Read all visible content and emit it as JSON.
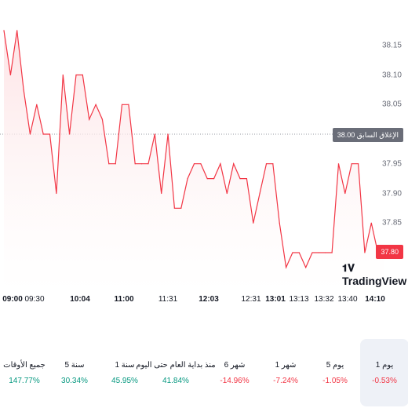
{
  "chart": {
    "y_ticks": [
      "38.15",
      "38.10",
      "38.05",
      "37.95",
      "37.90",
      "37.85"
    ],
    "x_ticks": [
      "09:00",
      "09:30",
      "10:04",
      "11:00",
      "11:31",
      "12:03",
      "12:31",
      "13:01",
      "13:13",
      "13:32",
      "13:40",
      "14:10"
    ],
    "prev_close_label": "الإغلاق السابق",
    "prev_close_value": "38.00",
    "last_price": "37.80",
    "watermark": "TradingView",
    "colors": {
      "line": "#f23645",
      "fill": "#fde2e4"
    }
  },
  "chart_data": {
    "type": "area",
    "y_range": [
      37.75,
      38.175
    ],
    "previous_close": 38.0,
    "series_values": [
      38.175,
      38.1,
      38.175,
      38.075,
      38.0,
      38.05,
      38.0,
      38.0,
      37.9,
      38.1,
      38.0,
      38.1,
      38.1,
      38.025,
      38.05,
      38.025,
      37.95,
      37.95,
      38.05,
      38.05,
      37.95,
      37.95,
      37.95,
      38.0,
      37.9,
      38.0,
      37.875,
      37.875,
      37.925,
      37.95,
      37.95,
      37.925,
      37.925,
      37.95,
      37.9,
      37.95,
      37.925,
      37.925,
      37.85,
      37.9,
      37.95,
      37.95,
      37.85,
      37.775,
      37.8,
      37.8,
      37.775,
      37.8,
      37.8,
      37.8,
      37.8,
      37.95,
      37.9,
      37.95,
      37.95,
      37.8,
      37.85,
      37.8,
      37.8
    ]
  },
  "periods": [
    {
      "label": "1 يوم",
      "change": "-0.53%",
      "direction": "down",
      "active": true
    },
    {
      "label": "5 يوم",
      "change": "-1.05%",
      "direction": "down",
      "active": false
    },
    {
      "label": "1 شهر",
      "change": "-7.24%",
      "direction": "down",
      "active": false
    },
    {
      "label": "6 شهر",
      "change": "-14.96%",
      "direction": "down",
      "active": false
    },
    {
      "label": "منذ بداية العام حتى اليوم",
      "change": "41.84%",
      "direction": "up",
      "active": false
    },
    {
      "label": "1 سنة",
      "change": "45.95%",
      "direction": "up",
      "active": false
    },
    {
      "label": "5 سنة",
      "change": "30.34%",
      "direction": "up",
      "active": false
    },
    {
      "label": "جميع الأوقات",
      "change": "147.77%",
      "direction": "up",
      "active": false
    }
  ]
}
